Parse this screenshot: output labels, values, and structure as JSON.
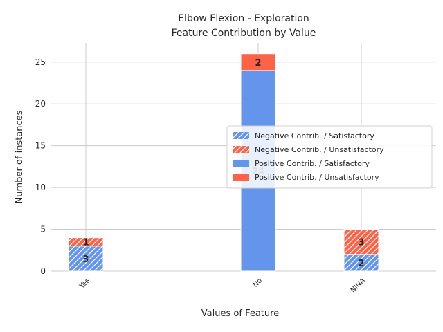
{
  "chart_data": {
    "type": "bar",
    "title_line1": "Elbow Flexion - Exploration",
    "title_line2": "Feature Contribution by Value",
    "xlabel": "Values of Feature",
    "ylabel": "Number of instances",
    "categories": [
      "Yes",
      "No",
      "NINA"
    ],
    "ylim": [
      0,
      27.3
    ],
    "yticks": [
      0,
      5,
      10,
      15,
      20,
      25
    ],
    "grid": true,
    "legend_position": "center-right",
    "colors": {
      "satisfactory": "#6495ED",
      "unsatisfactory": "#FF6347"
    },
    "series": [
      {
        "name": "Negative Contrib. / Satisfactory",
        "group": "negative",
        "hatch": true,
        "color": "#6495ED",
        "values": [
          3,
          0,
          2
        ]
      },
      {
        "name": "Negative Contrib. / Unsatisfactory",
        "group": "negative",
        "hatch": true,
        "color": "#FF6347",
        "values": [
          1,
          0,
          3
        ]
      },
      {
        "name": "Positive Contrib. / Satisfactory",
        "group": "positive",
        "hatch": false,
        "color": "#6495ED",
        "values": [
          0,
          24,
          0
        ]
      },
      {
        "name": "Positive Contrib. / Unsatisfactory",
        "group": "positive",
        "hatch": false,
        "color": "#FF6347",
        "values": [
          0,
          2,
          0
        ]
      }
    ]
  }
}
